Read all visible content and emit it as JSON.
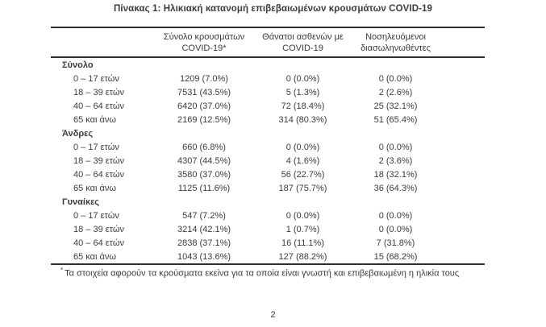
{
  "page": {
    "title": "Πίνακας 1: Ηλικιακή κατανομή επιβεβαιωμένων κρουσμάτων COVID-19",
    "page_number": "2",
    "footnote_marker": "*",
    "footnote_text": "Τα στοιχεία αφορούν τα κρούσματα εκείνα για τα οποία είναι γνωστή και επιβεβαιωμένη η ηλικία τους"
  },
  "colors": {
    "text": "#3b3b3b",
    "rule": "#2e2e2e",
    "background": "#ffffff"
  },
  "table": {
    "headers": [
      {
        "line1": "Σύνολο κρουσμάτων",
        "line2": "COVID-19*"
      },
      {
        "line1": "Θάνατοι ασθενών με",
        "line2": "COVID-19"
      },
      {
        "line1": "Νοσηλευόμενοι",
        "line2": "διασωληνωθέντες"
      }
    ],
    "sections": [
      {
        "label": "Σύνολο",
        "rows": [
          {
            "label": "0 – 17 ετών",
            "cases": "1209 (7.0%)",
            "deaths": "0 (0.0%)",
            "intubated": "0 (0.0%)"
          },
          {
            "label": "18 – 39 ετών",
            "cases": "7531 (43.5%)",
            "deaths": "5 (1.3%)",
            "intubated": "2 (2.6%)"
          },
          {
            "label": "40 – 64 ετών",
            "cases": "6420 (37.0%)",
            "deaths": "72 (18.4%)",
            "intubated": "25 (32.1%)"
          },
          {
            "label": "65 και άνω",
            "cases": "2169 (12.5%)",
            "deaths": "314 (80.3%)",
            "intubated": "51 (65.4%)"
          }
        ]
      },
      {
        "label": "Άνδρες",
        "rows": [
          {
            "label": "0 – 17 ετών",
            "cases": "660 (6.8%)",
            "deaths": "0 (0.0%)",
            "intubated": "0 (0.0%)"
          },
          {
            "label": "18 – 39 ετών",
            "cases": "4307 (44.5%)",
            "deaths": "4 (1.6%)",
            "intubated": "2 (3.6%)"
          },
          {
            "label": "40 – 64 ετών",
            "cases": "3580 (37.0%)",
            "deaths": "56 (22.7%)",
            "intubated": "18 (32.1%)"
          },
          {
            "label": "65 και άνω",
            "cases": "1125 (11.6%)",
            "deaths": "187 (75.7%)",
            "intubated": "36 (64.3%)"
          }
        ]
      },
      {
        "label": "Γυναίκες",
        "rows": [
          {
            "label": "0 – 17 ετών",
            "cases": "547 (7.2%)",
            "deaths": "0 (0.0%)",
            "intubated": "0 (0.0%)"
          },
          {
            "label": "18 – 39 ετών",
            "cases": "3214 (42.1%)",
            "deaths": "1 (0.7%)",
            "intubated": "0 (0.0%)"
          },
          {
            "label": "40 – 64 ετών",
            "cases": "2838 (37.1%)",
            "deaths": "16 (11.1%)",
            "intubated": "7 (31.8%)"
          },
          {
            "label": "65 και άνω",
            "cases": "1043 (13.6%)",
            "deaths": "127 (88.2%)",
            "intubated": "15 (68.2%)"
          }
        ]
      }
    ]
  }
}
